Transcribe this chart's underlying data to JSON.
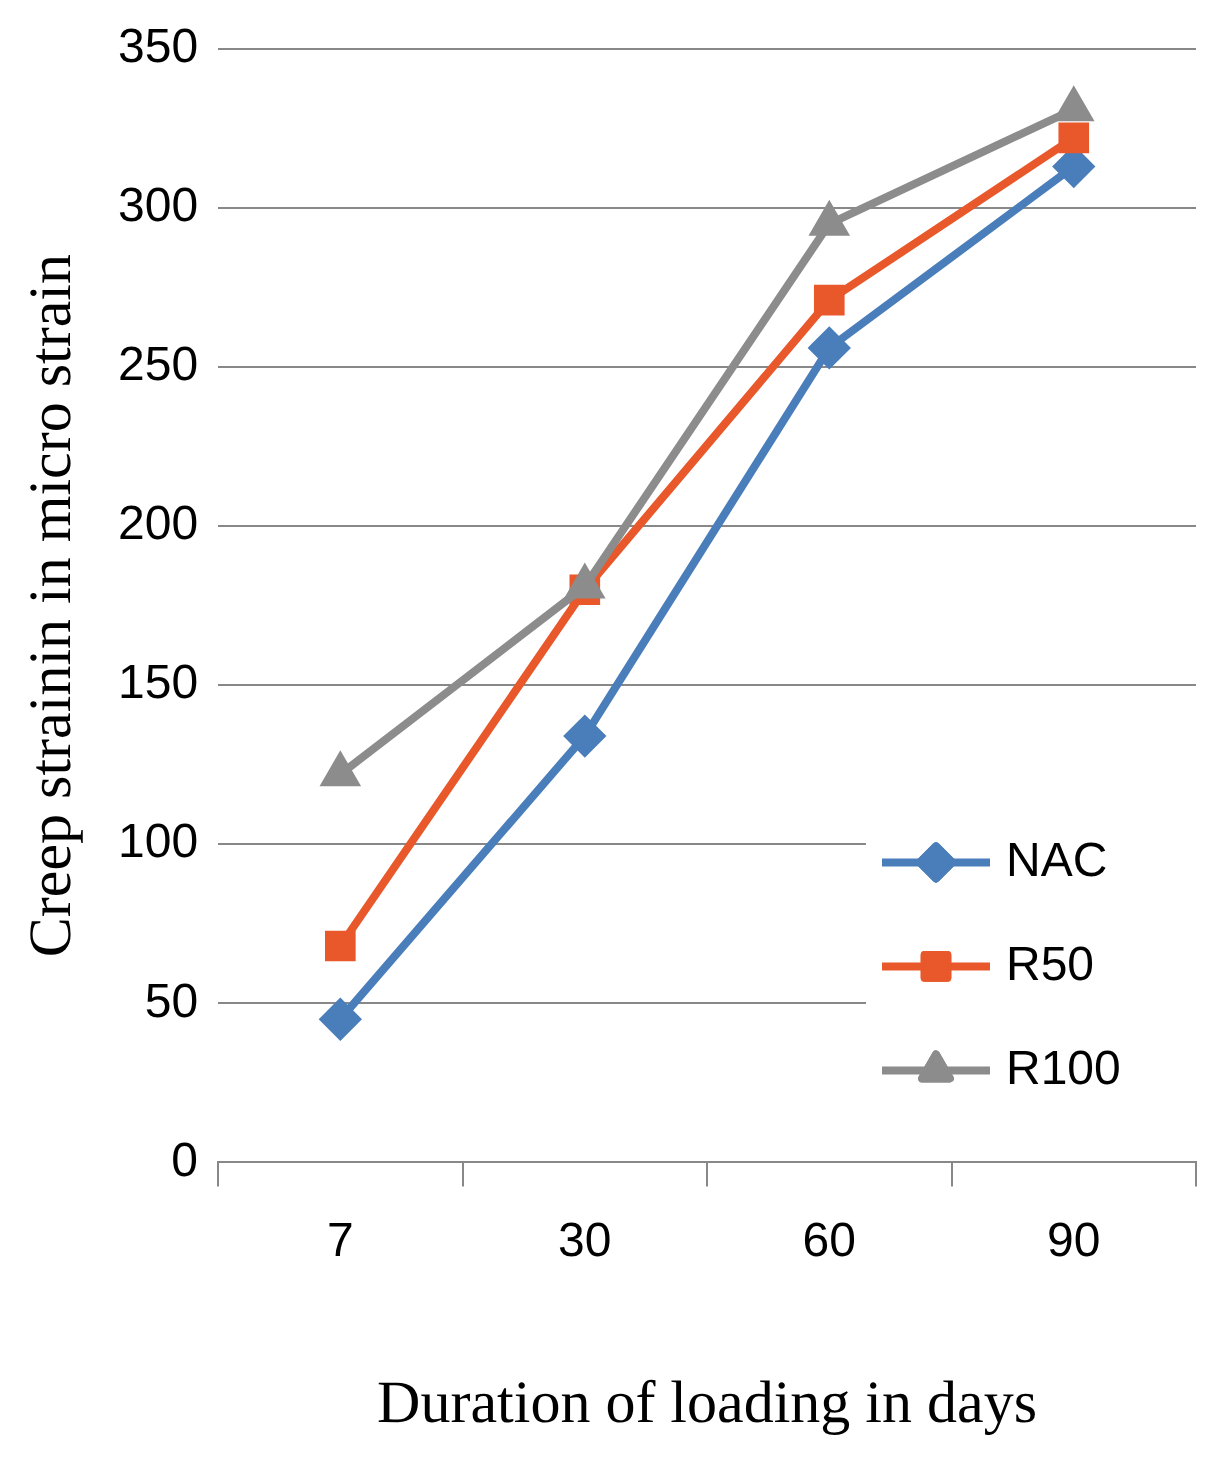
{
  "chart_data": {
    "type": "line",
    "xlabel": "Duration of loading in days",
    "ylabel": "Creep strainin in micro strain",
    "categories": [
      "7",
      "30",
      "60",
      "90"
    ],
    "series": [
      {
        "name": "NAC",
        "color": "#4a7ebb",
        "marker": "diamond",
        "values": [
          45,
          134,
          256,
          313
        ]
      },
      {
        "name": "R50",
        "color": "#e8582a",
        "marker": "square",
        "values": [
          68,
          180,
          271,
          322
        ]
      },
      {
        "name": "R100",
        "color": "#8c8c8c",
        "marker": "triangle",
        "values": [
          122,
          181,
          295,
          331
        ]
      }
    ],
    "ylim": [
      0,
      350
    ],
    "yticks": [
      0,
      50,
      100,
      150,
      200,
      250,
      300,
      350
    ],
    "grid": "y",
    "legend": "bottom right",
    "line_style": "solid"
  }
}
